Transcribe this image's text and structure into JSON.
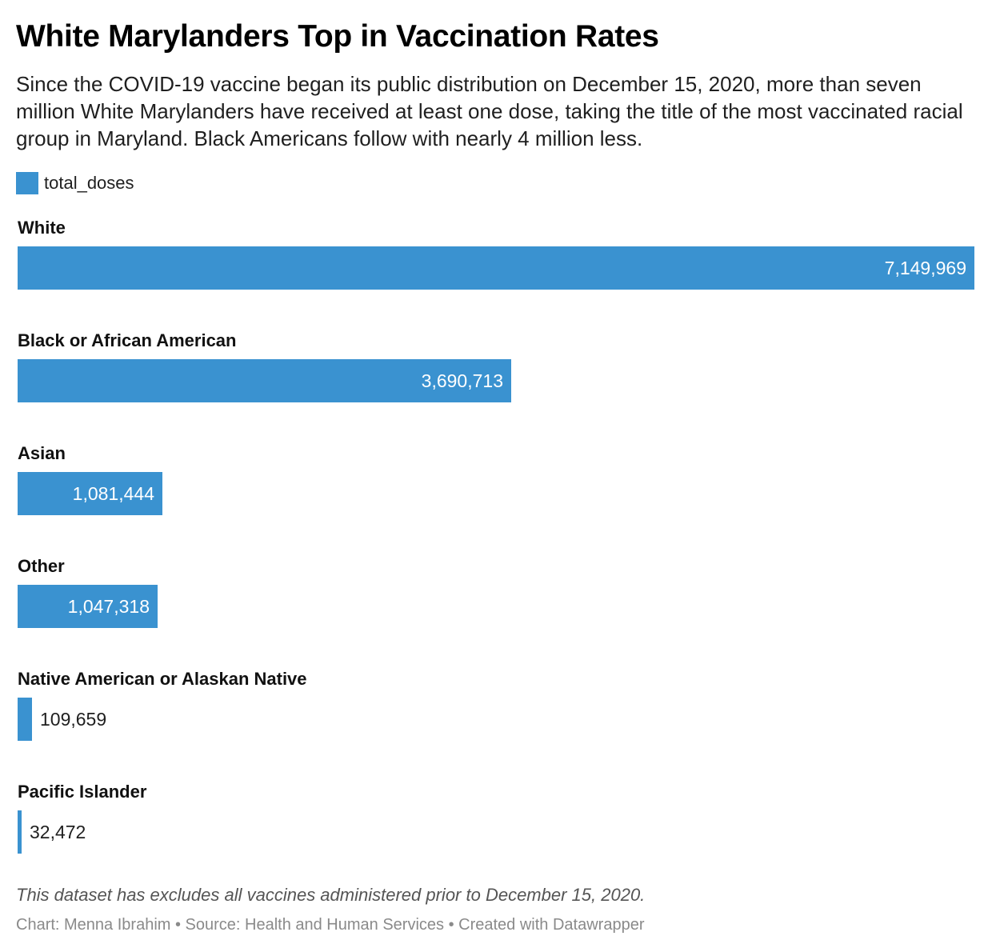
{
  "chart_data": {
    "type": "bar",
    "orientation": "horizontal",
    "title": "White Marylanders Top in Vaccination Rates",
    "subtitle": "Since the COVID-19 vaccine began its public distribution on December 15, 2020, more than seven million White Marylanders have received at least one dose, taking the title of the most vaccinated racial group in Maryland. Black Americans follow with nearly 4 million less.",
    "legend": {
      "placement": "top-left",
      "entries": [
        "total_doses"
      ]
    },
    "categories": [
      "White",
      "Black or African American",
      "Asian",
      "Other",
      "Native American or Alaskan Native",
      "Pacific Islander"
    ],
    "series": [
      {
        "name": "total_doses",
        "color": "#3a92d0",
        "values": [
          7149969,
          3690713,
          1081444,
          1047318,
          109659,
          32472
        ],
        "value_labels": [
          "7,149,969",
          "3,690,713",
          "1,081,444",
          "1,047,318",
          "109,659",
          "32,472"
        ]
      }
    ],
    "xlim": [
      0,
      7149969
    ],
    "grid": false,
    "notes": "This dataset has excludes all vaccines administered prior to December 15, 2020.",
    "byline": "Chart: Menna Ibrahim • Source: Health and Human Services • Created with Datawrapper"
  }
}
